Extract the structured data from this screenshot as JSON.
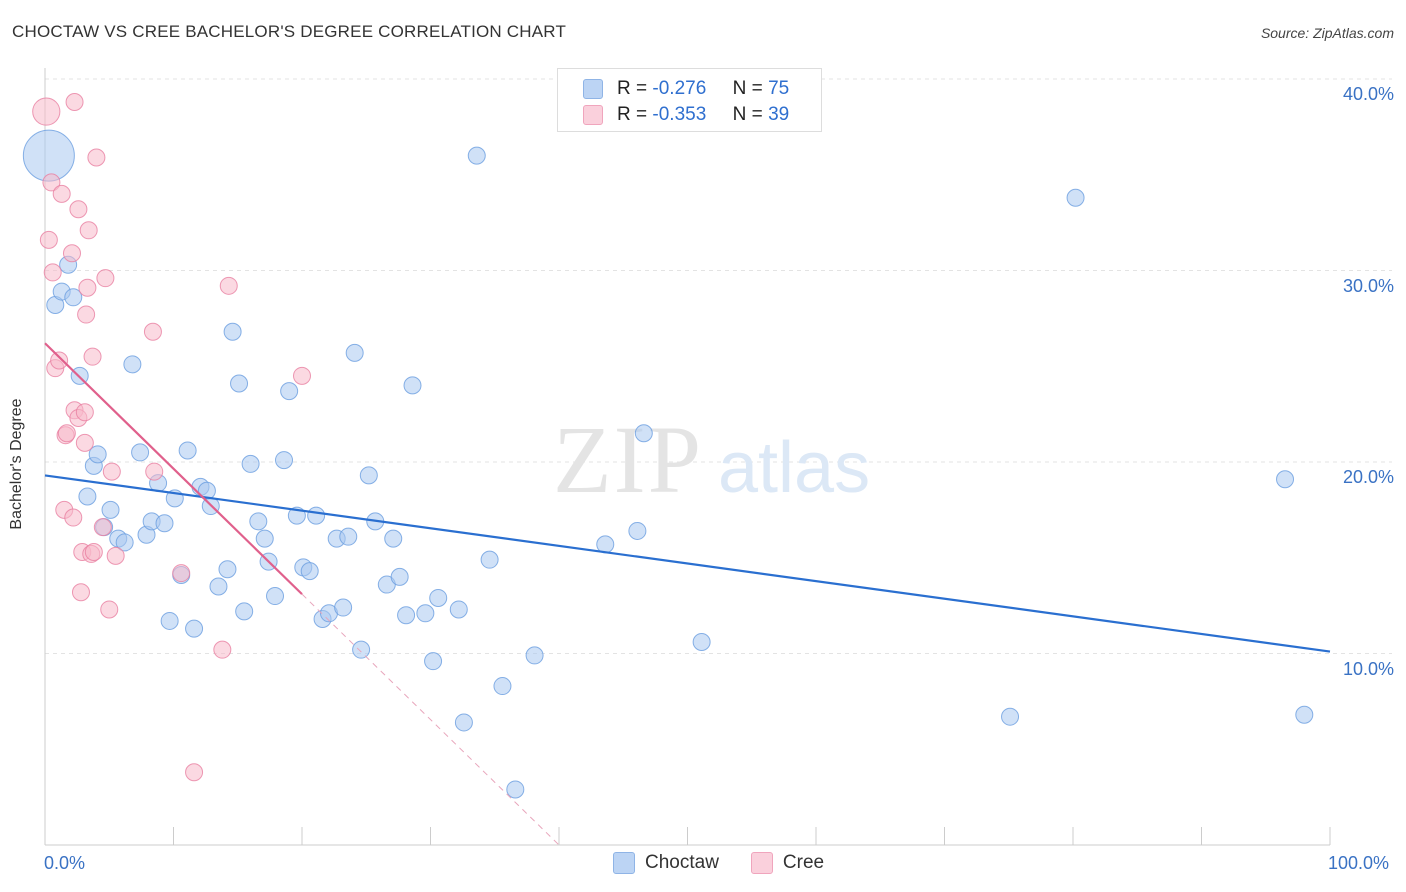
{
  "title": "CHOCTAW VS CREE BACHELOR'S DEGREE CORRELATION CHART",
  "source": "Source: ZipAtlas.com",
  "watermark": {
    "zip": "ZIP",
    "atlas": "atlas"
  },
  "legend": {
    "rows": [
      {
        "r_label": "R =",
        "r_value": "-0.276",
        "n_label": "N =",
        "n_value": "75",
        "color": "#a9c8f0"
      },
      {
        "r_label": "R =",
        "r_value": "-0.353",
        "n_label": "N =",
        "n_value": "39",
        "color": "#f7b9cb"
      }
    ]
  },
  "bottom_legend": [
    {
      "label": "Choctaw",
      "color": "#a9c8f0"
    },
    {
      "label": "Cree",
      "color": "#f7b9cb"
    }
  ],
  "chart_data": {
    "type": "scatter",
    "title": "CHOCTAW VS CREE BACHELOR'S DEGREE CORRELATION CHART",
    "xlabel": "",
    "ylabel": "Bachelor's Degree",
    "xlim": [
      0,
      100
    ],
    "ylim": [
      0,
      40
    ],
    "x_tick_labels": [
      "0.0%",
      "100.0%"
    ],
    "y_ticks": [
      10,
      20,
      30,
      40
    ],
    "y_tick_labels": [
      "10.0%",
      "20.0%",
      "30.0%",
      "40.0%"
    ],
    "grid": true,
    "series": [
      {
        "name": "Choctaw",
        "color": "#6a9de0",
        "fill": "#a9c8f0",
        "trend": {
          "x": [
            0,
            100
          ],
          "y": [
            19.3,
            10.1
          ]
        },
        "points": [
          [
            0.3,
            36.0,
            3
          ],
          [
            0.8,
            28.2,
            1
          ],
          [
            1.3,
            28.9,
            1
          ],
          [
            1.8,
            30.3,
            1
          ],
          [
            2.2,
            28.6,
            1
          ],
          [
            2.7,
            24.5,
            1
          ],
          [
            3.3,
            18.2,
            1
          ],
          [
            3.8,
            19.8,
            1
          ],
          [
            4.1,
            20.4,
            1
          ],
          [
            4.6,
            16.6,
            1
          ],
          [
            5.1,
            17.5,
            1
          ],
          [
            5.7,
            16.0,
            1
          ],
          [
            6.2,
            15.8,
            1
          ],
          [
            6.8,
            25.1,
            1
          ],
          [
            7.4,
            20.5,
            1
          ],
          [
            7.9,
            16.2,
            1
          ],
          [
            8.3,
            16.9,
            1
          ],
          [
            8.8,
            18.9,
            1
          ],
          [
            9.3,
            16.8,
            1
          ],
          [
            9.7,
            11.7,
            1
          ],
          [
            10.1,
            18.1,
            1
          ],
          [
            10.6,
            14.1,
            1
          ],
          [
            11.1,
            20.6,
            1
          ],
          [
            11.6,
            11.3,
            1
          ],
          [
            12.1,
            18.7,
            1
          ],
          [
            12.6,
            18.5,
            1
          ],
          [
            12.9,
            17.7,
            1
          ],
          [
            13.5,
            13.5,
            1
          ],
          [
            14.2,
            14.4,
            1
          ],
          [
            14.6,
            26.8,
            1
          ],
          [
            15.1,
            24.1,
            1
          ],
          [
            15.5,
            12.2,
            1
          ],
          [
            16.0,
            19.9,
            1
          ],
          [
            16.6,
            16.9,
            1
          ],
          [
            17.1,
            16.0,
            1
          ],
          [
            17.4,
            14.8,
            1
          ],
          [
            17.9,
            13.0,
            1
          ],
          [
            18.6,
            20.1,
            1
          ],
          [
            19.0,
            23.7,
            1
          ],
          [
            19.6,
            17.2,
            1
          ],
          [
            20.1,
            14.5,
            1
          ],
          [
            20.6,
            14.3,
            1
          ],
          [
            21.1,
            17.2,
            1
          ],
          [
            21.6,
            11.8,
            1
          ],
          [
            22.1,
            12.1,
            1
          ],
          [
            22.7,
            16.0,
            1
          ],
          [
            23.2,
            12.4,
            1
          ],
          [
            23.6,
            16.1,
            1
          ],
          [
            24.1,
            25.7,
            1
          ],
          [
            24.6,
            10.2,
            1
          ],
          [
            25.2,
            19.3,
            1
          ],
          [
            25.7,
            16.9,
            1
          ],
          [
            26.6,
            13.6,
            1
          ],
          [
            27.1,
            16.0,
            1
          ],
          [
            27.6,
            14.0,
            1
          ],
          [
            28.1,
            12.0,
            1
          ],
          [
            28.6,
            24.0,
            1
          ],
          [
            29.6,
            12.1,
            1
          ],
          [
            30.2,
            9.6,
            1
          ],
          [
            30.6,
            12.9,
            1
          ],
          [
            32.2,
            12.3,
            1
          ],
          [
            32.6,
            6.4,
            1
          ],
          [
            33.6,
            36.0,
            1
          ],
          [
            34.6,
            14.9,
            1
          ],
          [
            35.6,
            8.3,
            1
          ],
          [
            36.6,
            2.9,
            1
          ],
          [
            38.1,
            9.9,
            1
          ],
          [
            43.6,
            15.7,
            1
          ],
          [
            46.1,
            16.4,
            1
          ],
          [
            46.6,
            21.5,
            1
          ],
          [
            51.1,
            10.6,
            1
          ],
          [
            75.1,
            6.7,
            1
          ],
          [
            80.2,
            33.8,
            1
          ],
          [
            96.5,
            19.1,
            1
          ],
          [
            98.0,
            6.8,
            1
          ]
        ]
      },
      {
        "name": "Cree",
        "color": "#e87fa1",
        "fill": "#f7b9cb",
        "trend": {
          "x": [
            0,
            20
          ],
          "y": [
            26.2,
            13.1
          ]
        },
        "trend_dashed": {
          "x": [
            20,
            40
          ],
          "y": [
            13.1,
            0
          ]
        },
        "points": [
          [
            0.1,
            38.3,
            1.6
          ],
          [
            0.3,
            31.6,
            1
          ],
          [
            0.5,
            34.6,
            1
          ],
          [
            0.6,
            29.9,
            1
          ],
          [
            0.8,
            24.9,
            1
          ],
          [
            1.1,
            25.3,
            1
          ],
          [
            1.3,
            34.0,
            1
          ],
          [
            1.5,
            17.5,
            1
          ],
          [
            1.6,
            21.4,
            1
          ],
          [
            1.7,
            21.5,
            1
          ],
          [
            2.1,
            30.9,
            1
          ],
          [
            2.3,
            38.8,
            1
          ],
          [
            2.2,
            17.1,
            1
          ],
          [
            2.3,
            22.7,
            1
          ],
          [
            2.6,
            22.3,
            1
          ],
          [
            2.6,
            33.2,
            1
          ],
          [
            2.8,
            13.2,
            1
          ],
          [
            3.1,
            21.0,
            1
          ],
          [
            2.9,
            15.3,
            1
          ],
          [
            3.2,
            27.7,
            1
          ],
          [
            3.1,
            22.6,
            1
          ],
          [
            3.3,
            29.1,
            1
          ],
          [
            3.6,
            15.2,
            1
          ],
          [
            3.4,
            32.1,
            1
          ],
          [
            3.7,
            25.5,
            1
          ],
          [
            3.8,
            15.3,
            1
          ],
          [
            4.0,
            35.9,
            1
          ],
          [
            4.5,
            16.6,
            1
          ],
          [
            4.7,
            29.6,
            1
          ],
          [
            5.0,
            12.3,
            1
          ],
          [
            5.2,
            19.5,
            1
          ],
          [
            5.5,
            15.1,
            1
          ],
          [
            8.4,
            26.8,
            1
          ],
          [
            8.5,
            19.5,
            1
          ],
          [
            10.6,
            14.2,
            1
          ],
          [
            11.6,
            3.8,
            1
          ],
          [
            13.8,
            10.2,
            1
          ],
          [
            14.3,
            29.2,
            1
          ],
          [
            20.0,
            24.5,
            1
          ]
        ]
      }
    ]
  }
}
